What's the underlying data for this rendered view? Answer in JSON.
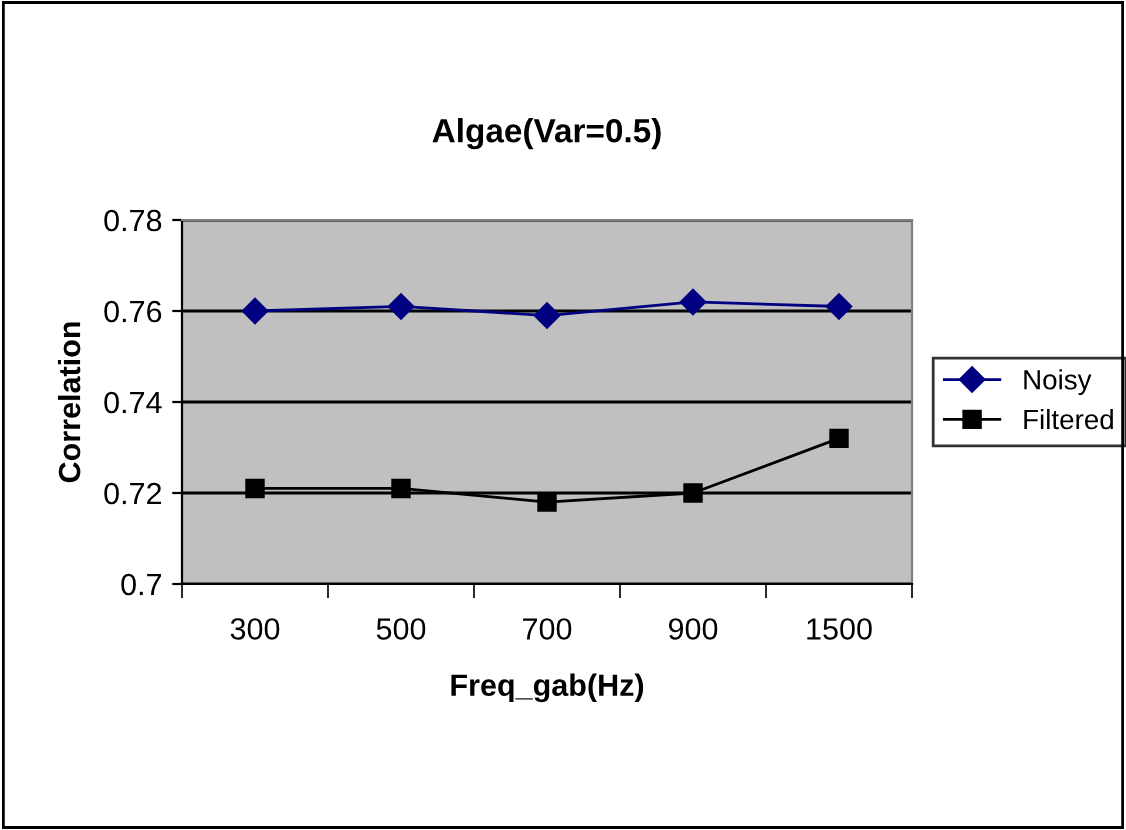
{
  "chart_data": {
    "type": "line",
    "title": "Algae(Var=0.5)",
    "xlabel": "Freq_gab(Hz)",
    "ylabel": "Correlation",
    "categories": [
      "300",
      "500",
      "700",
      "900",
      "1500"
    ],
    "series": [
      {
        "name": "Noisy",
        "color": "#000080",
        "marker": "diamond",
        "values": [
          0.76,
          0.761,
          0.759,
          0.762,
          0.761
        ]
      },
      {
        "name": "Filtered",
        "color": "#000000",
        "marker": "square",
        "values": [
          0.721,
          0.721,
          0.718,
          0.72,
          0.732
        ]
      }
    ],
    "ylim": [
      0.7,
      0.78
    ],
    "yticks": [
      0.7,
      0.72,
      0.74,
      0.76,
      0.78
    ],
    "grid": "y",
    "legend": "right"
  }
}
